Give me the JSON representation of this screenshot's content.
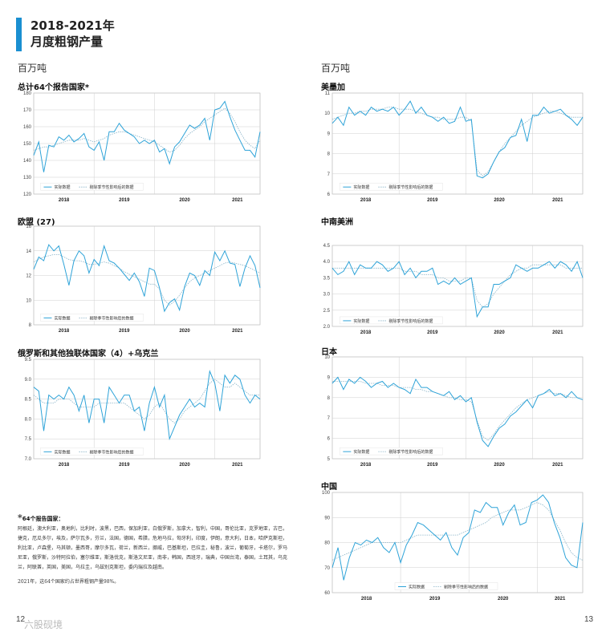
{
  "header": {
    "line1": "2018-2021年",
    "line2": "月度粗钢产量"
  },
  "unit_left": "百万吨",
  "unit_right": "百万吨",
  "colors": {
    "accent": "#1a8fd1",
    "actual": "#2ea3d8",
    "adjusted": "#8ab4c8"
  },
  "legend": {
    "actual": "实际数据",
    "adjusted": "剔除季节性影响后的数据"
  },
  "x_labels": [
    "2018",
    "2019",
    "2020",
    "2021"
  ],
  "footnote": {
    "title": "64个报告国家：",
    "body": "阿根廷，澳大利亚，奥地利，比利时，波黑，巴西，保加利亚，白俄罗斯，加拿大，智利，中国，哥伦比亚，克罗地亚，古巴，捷克，厄瓜多尔，埃及，萨尔瓦多，芬兰，法国，德国，希腊，危地马拉，匈牙利，印度，伊朗，意大利，日本，哈萨克斯坦，利比亚，卢森堡，马其顿，墨西哥，摩尔多瓦，荷兰，新西兰，挪威，巴基斯坦，巴拉圭，秘鲁，波兰，葡萄牙，卡塔尔，罗马尼亚，俄罗斯，沙特阿拉伯，塞尔维亚，斯洛伐克，斯洛文尼亚，南非，韩国，西班牙，瑞典，中国台湾，泰国，土耳其，乌克兰，阿联酋，英国，美国，乌拉圭，乌兹别克斯坦，委内瑞拉及越南。",
    "share": "2021年，这64个国家约占世界粗钢产量98%。"
  },
  "page_left": "12",
  "page_right": "13",
  "watermark": "六股砚境",
  "chart_data": [
    {
      "type": "line",
      "title": "总计64个报告国家*",
      "ylim": [
        120,
        180
      ],
      "yticks": [
        120,
        130,
        140,
        150,
        160,
        170,
        180
      ],
      "series": [
        {
          "name": "实际数据",
          "values": [
            143,
            151,
            133,
            149,
            148,
            154,
            152,
            155,
            151,
            153,
            156,
            148,
            146,
            151,
            140,
            157,
            157,
            162,
            158,
            156,
            154,
            150,
            152,
            150,
            152,
            145,
            147,
            138,
            148,
            151,
            156,
            161,
            159,
            161,
            165,
            152,
            170,
            171,
            175,
            166,
            158,
            152,
            146,
            146,
            142,
            157
          ]
        },
        {
          "name": "剔除季节性影响后的数据",
          "values": [
            146,
            147,
            148,
            148,
            149,
            150,
            151,
            152,
            152,
            152,
            153,
            152,
            151,
            152,
            153,
            155,
            156,
            157,
            157,
            156,
            155,
            154,
            153,
            152,
            151,
            149,
            147,
            145,
            146,
            149,
            153,
            156,
            158,
            160,
            163,
            165,
            167,
            169,
            171,
            168,
            163,
            157,
            152,
            149,
            147,
            152
          ]
        }
      ]
    },
    {
      "type": "line",
      "title": "欧盟 (27)",
      "ylim": [
        8,
        16
      ],
      "yticks": [
        8,
        10,
        12,
        14,
        16
      ],
      "series": [
        {
          "name": "实际数据",
          "values": [
            12.5,
            13.5,
            13.2,
            14.5,
            14.0,
            14.4,
            12.9,
            11.2,
            13.2,
            14.0,
            13.6,
            12.2,
            13.3,
            12.8,
            14.4,
            13.2,
            13.0,
            12.6,
            12.1,
            11.6,
            12.2,
            11.5,
            10.3,
            12.6,
            12.4,
            11.0,
            9.1,
            9.8,
            10.1,
            9.2,
            11.1,
            12.2,
            12.0,
            11.2,
            12.4,
            12.0,
            13.9,
            13.2,
            14.0,
            13.0,
            12.9,
            11.1,
            12.6,
            13.6,
            12.8,
            11.0
          ]
        },
        {
          "name": "剔除季节性影响后的数据",
          "values": [
            13.1,
            13.3,
            13.5,
            13.6,
            13.7,
            13.7,
            13.5,
            13.3,
            13.2,
            13.2,
            13.1,
            12.9,
            12.9,
            13.0,
            13.1,
            13.0,
            12.8,
            12.6,
            12.3,
            12.1,
            11.9,
            11.7,
            11.5,
            11.3,
            11.3,
            10.9,
            10.0,
            9.6,
            9.9,
            10.4,
            11.0,
            11.5,
            11.8,
            12.0,
            12.2,
            12.4,
            12.6,
            12.8,
            13.0,
            13.1,
            13.0,
            12.9,
            12.8,
            12.6,
            12.4,
            12.2
          ]
        }
      ]
    },
    {
      "type": "line",
      "title": "俄罗斯和其他独联体国家（4）+乌克兰",
      "ylim": [
        7.0,
        9.5
      ],
      "yticks": [
        7.0,
        7.5,
        8.0,
        8.5,
        9.0,
        9.5
      ],
      "series": [
        {
          "name": "实际数据",
          "values": [
            8.8,
            8.7,
            7.7,
            8.6,
            8.5,
            8.6,
            8.5,
            8.8,
            8.6,
            8.2,
            8.6,
            7.9,
            8.5,
            8.5,
            7.9,
            8.8,
            8.6,
            8.4,
            8.6,
            8.6,
            8.2,
            8.3,
            7.7,
            8.4,
            8.8,
            8.3,
            8.6,
            7.5,
            7.8,
            8.1,
            8.3,
            8.5,
            8.3,
            8.4,
            8.3,
            9.2,
            8.9,
            8.2,
            9.1,
            8.9,
            9.1,
            9.0,
            8.6,
            8.4,
            8.6,
            8.5
          ]
        },
        {
          "name": "剔除季节性影响后的数据",
          "values": [
            8.6,
            8.5,
            8.4,
            8.4,
            8.4,
            8.5,
            8.5,
            8.5,
            8.4,
            8.3,
            8.3,
            8.3,
            8.3,
            8.4,
            8.4,
            8.4,
            8.4,
            8.4,
            8.4,
            8.3,
            8.2,
            8.1,
            8.0,
            8.1,
            8.3,
            8.4,
            8.2,
            8.0,
            7.9,
            8.0,
            8.2,
            8.3,
            8.4,
            8.5,
            8.7,
            8.9,
            9.0,
            8.9,
            8.8,
            8.8,
            8.9,
            8.8,
            8.7,
            8.6,
            8.6,
            8.6
          ]
        }
      ]
    },
    {
      "type": "line",
      "title": "美墨加",
      "ylim": [
        6,
        11
      ],
      "yticks": [
        6,
        7,
        8,
        9,
        10,
        11
      ],
      "series": [
        {
          "name": "实际数据",
          "values": [
            9.5,
            9.8,
            9.4,
            10.3,
            9.9,
            10.1,
            9.9,
            10.3,
            10.1,
            10.2,
            10.1,
            10.3,
            9.9,
            10.2,
            10.6,
            10.0,
            10.3,
            9.9,
            9.8,
            9.6,
            9.8,
            9.5,
            9.6,
            10.3,
            9.6,
            9.7,
            6.9,
            6.8,
            7.0,
            7.6,
            8.1,
            8.3,
            8.8,
            8.9,
            9.7,
            8.6,
            9.9,
            9.9,
            10.3,
            10.0,
            10.1,
            10.2,
            9.9,
            9.7,
            9.4,
            9.8
          ]
        },
        {
          "name": "剔除季节性影响后的数据",
          "values": [
            9.7,
            9.8,
            9.9,
            10.0,
            10.0,
            10.1,
            10.1,
            10.2,
            10.2,
            10.2,
            10.3,
            10.3,
            10.2,
            10.2,
            10.2,
            10.1,
            10.0,
            9.9,
            9.8,
            9.8,
            9.7,
            9.7,
            9.7,
            9.8,
            9.8,
            9.6,
            7.2,
            6.9,
            7.1,
            7.6,
            8.1,
            8.5,
            8.8,
            9.1,
            9.4,
            9.6,
            9.8,
            9.9,
            10.0,
            10.1,
            10.1,
            10.0,
            9.9,
            9.8,
            9.8,
            9.8
          ]
        }
      ]
    },
    {
      "type": "line",
      "title": "中南美洲",
      "ylim": [
        2.0,
        4.5
      ],
      "yticks": [
        2.0,
        2.5,
        3.0,
        3.5,
        4.0,
        4.5
      ],
      "series": [
        {
          "name": "实际数据",
          "values": [
            3.8,
            3.6,
            3.7,
            4.0,
            3.6,
            3.9,
            3.8,
            3.8,
            4.0,
            3.9,
            3.7,
            3.8,
            4.0,
            3.6,
            3.8,
            3.5,
            3.7,
            3.7,
            3.8,
            3.3,
            3.4,
            3.3,
            3.5,
            3.3,
            3.4,
            3.5,
            2.3,
            2.6,
            2.6,
            3.3,
            3.3,
            3.4,
            3.5,
            3.9,
            3.8,
            3.7,
            3.8,
            3.8,
            3.9,
            4.0,
            3.8,
            4.0,
            3.9,
            3.7,
            4.0,
            3.5
          ]
        },
        {
          "name": "剔除季节性影响后的数据",
          "values": [
            3.8,
            3.8,
            3.8,
            3.8,
            3.8,
            3.8,
            3.8,
            3.8,
            3.8,
            3.8,
            3.8,
            3.8,
            3.8,
            3.7,
            3.7,
            3.7,
            3.6,
            3.6,
            3.6,
            3.5,
            3.5,
            3.4,
            3.4,
            3.4,
            3.5,
            3.5,
            2.8,
            2.6,
            2.7,
            3.0,
            3.2,
            3.4,
            3.6,
            3.7,
            3.8,
            3.8,
            3.9,
            3.9,
            3.9,
            3.9,
            3.9,
            3.9,
            3.8,
            3.8,
            3.8,
            3.8
          ]
        }
      ]
    },
    {
      "type": "line",
      "title": "日本",
      "ylim": [
        5.0,
        10.0
      ],
      "yticks": [
        5.0,
        6.0,
        7.0,
        8.0,
        9.0,
        10.0
      ],
      "series": [
        {
          "name": "实际数据",
          "values": [
            8.7,
            9.0,
            8.4,
            8.9,
            8.7,
            9.0,
            8.8,
            8.5,
            8.7,
            8.8,
            8.5,
            8.7,
            8.5,
            8.4,
            8.2,
            8.9,
            8.5,
            8.5,
            8.3,
            8.2,
            8.1,
            8.3,
            7.9,
            8.1,
            7.8,
            8.0,
            6.8,
            5.9,
            5.6,
            6.1,
            6.5,
            6.7,
            7.1,
            7.3,
            7.6,
            7.9,
            7.5,
            8.1,
            8.2,
            8.4,
            8.1,
            8.2,
            8.0,
            8.3,
            8.0,
            7.9
          ]
        },
        {
          "name": "剔除季节性影响后的数据",
          "values": [
            8.8,
            8.8,
            8.8,
            8.8,
            8.8,
            8.8,
            8.7,
            8.7,
            8.7,
            8.6,
            8.6,
            8.6,
            8.5,
            8.5,
            8.5,
            8.4,
            8.4,
            8.3,
            8.3,
            8.2,
            8.1,
            8.0,
            8.0,
            7.9,
            7.9,
            7.8,
            6.9,
            6.1,
            5.9,
            6.2,
            6.6,
            6.9,
            7.2,
            7.5,
            7.7,
            7.9,
            8.0,
            8.1,
            8.2,
            8.3,
            8.2,
            8.2,
            8.1,
            8.0,
            8.0,
            7.9
          ]
        }
      ]
    },
    {
      "type": "line",
      "title": "中国",
      "ylim": [
        60,
        100
      ],
      "yticks": [
        60,
        70,
        80,
        90,
        100
      ],
      "series": [
        {
          "name": "实际数据",
          "values": [
            70,
            78,
            65,
            74,
            80,
            79,
            81,
            80,
            82,
            78,
            76,
            80,
            72,
            79,
            83,
            88,
            87,
            85,
            83,
            81,
            84,
            78,
            75,
            82,
            84,
            93,
            92,
            96,
            94,
            94,
            87,
            92,
            95,
            87,
            88,
            96,
            97,
            99,
            96,
            88,
            82,
            74,
            71,
            70,
            88
          ]
        },
        {
          "name": "剔除季节性影响后的数据",
          "values": [
            73,
            74,
            75,
            76,
            77,
            78,
            79,
            80,
            80,
            80,
            80,
            80,
            80,
            81,
            82,
            83,
            83,
            83,
            83,
            83,
            83,
            83,
            83,
            84,
            85,
            86,
            87,
            88,
            90,
            91,
            92,
            93,
            93,
            93,
            94,
            95,
            96,
            95,
            93,
            89,
            85,
            80,
            76,
            74,
            73
          ]
        }
      ]
    }
  ]
}
